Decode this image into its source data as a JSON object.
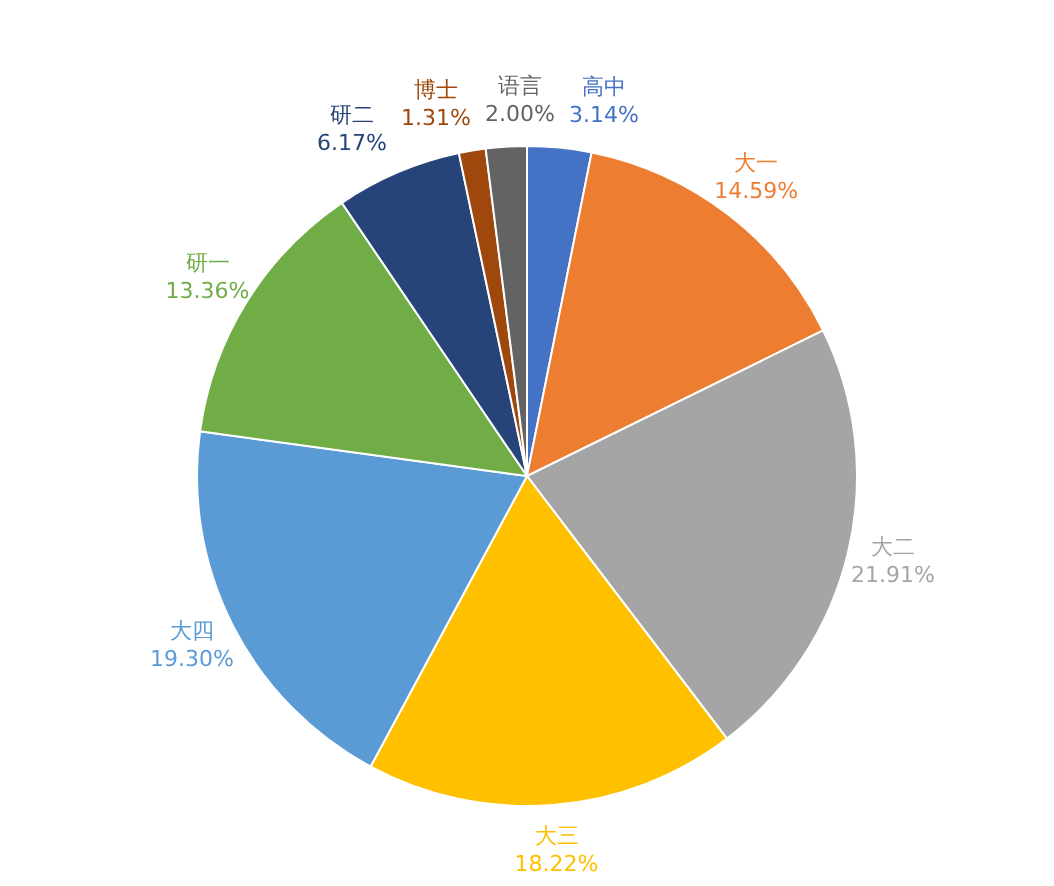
{
  "chart_data": {
    "type": "pie",
    "categories": [
      "高中",
      "大一",
      "大二",
      "大三",
      "大四",
      "研一",
      "研二",
      "博士",
      "语言"
    ],
    "values": [
      3.14,
      14.59,
      21.91,
      18.22,
      19.3,
      13.36,
      6.17,
      1.31,
      2.0
    ],
    "colors": [
      "#4472c4",
      "#ed7d31",
      "#a5a5a5",
      "#ffc000",
      "#5b9bd5",
      "#70ad47",
      "#264478",
      "#9e480e",
      "#636363"
    ],
    "value_labels": [
      "3.14%",
      "14.59%",
      "21.91%",
      "18.22%",
      "19.30%",
      "13.36%",
      "6.17%",
      "1.31%",
      "2.00%"
    ],
    "legend": false
  }
}
